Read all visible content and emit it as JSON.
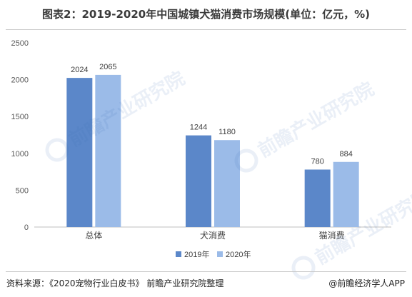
{
  "header": {
    "title": "图表2：2019-2020年中国城镇犬猫消费市场规模(单位：亿元，%)"
  },
  "footer": {
    "source": "资料来源：《2020宠物行业白皮书》 前瞻产业研究院整理",
    "brand": "@前瞻经济学人APP"
  },
  "watermark": {
    "text": "前瞻产业研究院"
  },
  "colors": {
    "series_2019": "#5b87c9",
    "series_2020": "#9bbbe8",
    "axis": "#bfbfbf",
    "tick_text": "#595959"
  },
  "chart_data": {
    "type": "bar",
    "categories": [
      "总体",
      "犬消费",
      "猫消费"
    ],
    "series": [
      {
        "name": "2019年",
        "values": [
          2024,
          1244,
          780
        ]
      },
      {
        "name": "2020年",
        "values": [
          2065,
          1180,
          884
        ]
      }
    ],
    "ylim": [
      0,
      2500
    ],
    "yticks": [
      0,
      500,
      1000,
      1500,
      2000,
      2500
    ],
    "grid": false,
    "legend_position": "bottom"
  }
}
